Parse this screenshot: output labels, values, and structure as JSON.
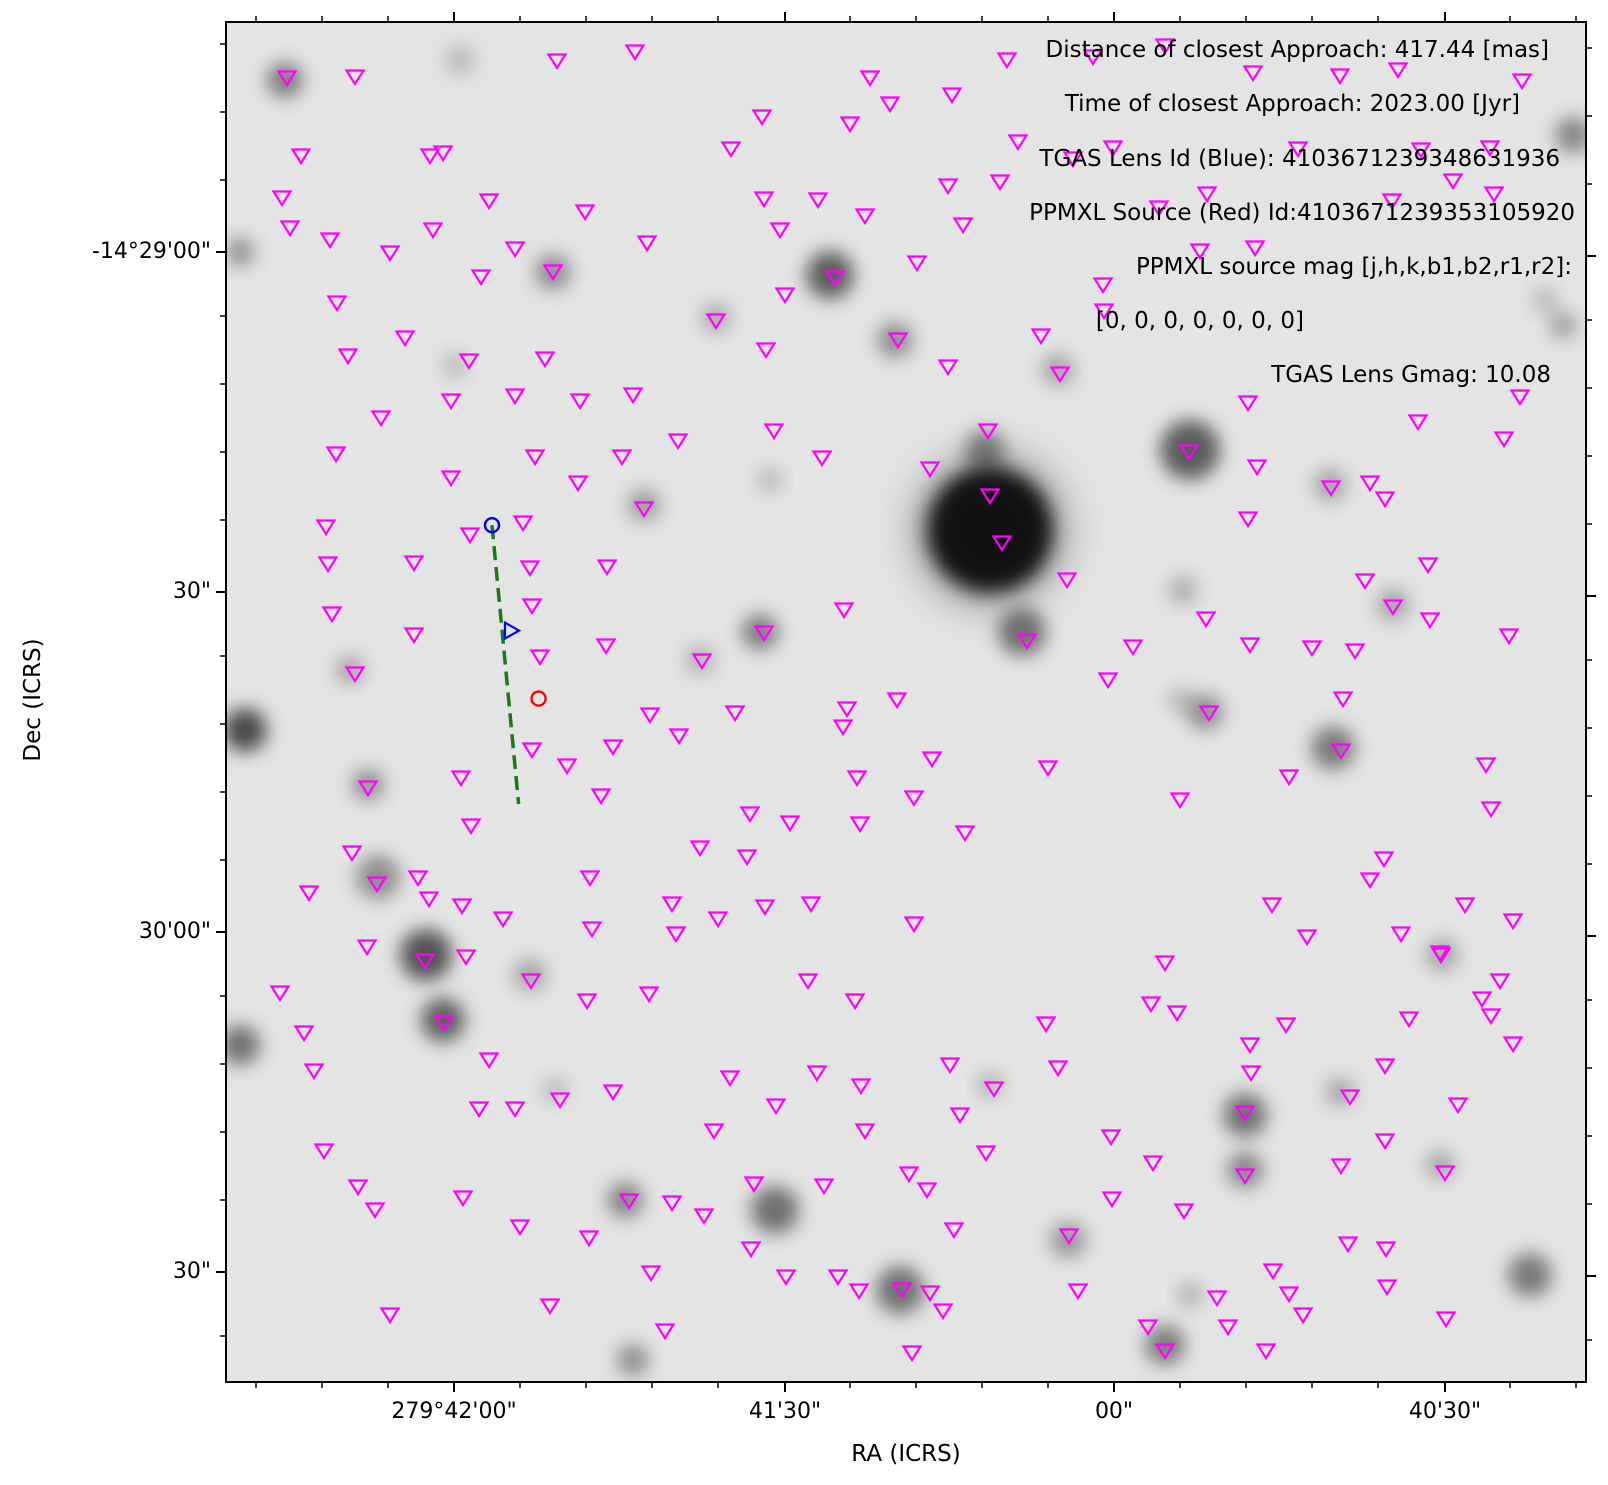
{
  "chart_data": {
    "type": "scatter",
    "title": "",
    "xlabel": "RA (ICRS)",
    "ylabel": "Dec (ICRS)",
    "x_tick_labels": [
      "279°42'00\"",
      "41'30\"",
      "00\"",
      "40'30\""
    ],
    "y_tick_labels": [
      "-14°29'00\"",
      "30\"",
      "30'00\"",
      "30\""
    ],
    "annotations": [
      "Distance of closest Approach: 417.44 [mas]",
      "Time of closest Approach: 2023.00 [Jyr]",
      "TGAS Lens Id (Blue): 4103671239348631936",
      "PPMXL Source (Red) Id:4103671239353105920",
      "PPMXL source mag [j,h,k,b1,b2,r1,r2]:",
      "[0, 0, 0, 0, 0, 0, 0]",
      "TGAS Lens Gmag: 10.08"
    ],
    "ra_range_arcsec_from_42m00s": [
      -14.6,
      26.3
    ],
    "dec_range_arcsec_from_29m00s": [
      -6.7,
      33.3
    ],
    "grid": false,
    "colors": {
      "background_stars": "#000000",
      "catalog_markers": "#ff00ff",
      "lens": "#0000ff",
      "source": "#ff0000",
      "trajectory": "#1a7a1a"
    },
    "series": [
      {
        "name": "TGAS Lens Id (Blue): 4103671239348631936",
        "marker": "circle",
        "ra_offset_arcsec": [
          18.3
        ],
        "dec_offset_arcsec": [
          8.1
        ]
      },
      {
        "name": "PPMXL Source (Red) Id:4103671239353105920",
        "marker": "circle",
        "ra_offset_arcsec": [
          16.9
        ],
        "dec_offset_arcsec": [
          13.2
        ]
      }
    ],
    "lens_trajectory": {
      "start": [
        18.3,
        8.1
      ],
      "end": [
        17.5,
        16.3
      ],
      "arrow_at": [
        17.7,
        11.2
      ]
    },
    "catalog_sources_px_grid": "approximately 280 magenta triangle markers (PPMXL catalog sources)"
  }
}
